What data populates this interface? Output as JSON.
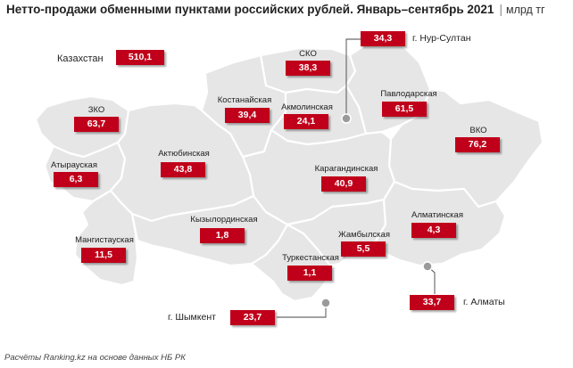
{
  "title": "Нетто-продажи обменными пунктами российских рублей. Январь–сентябрь 2021",
  "unit": "млрд тг",
  "total": {
    "label": "Казахстан",
    "value": "510,1"
  },
  "regions": [
    {
      "id": "sko",
      "name": "СКО",
      "value": "38,3"
    },
    {
      "id": "kostanay",
      "name": "Костанайская",
      "value": "39,4"
    },
    {
      "id": "akmola",
      "name": "Акмолинская",
      "value": "24,1"
    },
    {
      "id": "pavlodar",
      "name": "Павлодарская",
      "value": "61,5"
    },
    {
      "id": "zko",
      "name": "ЗКО",
      "value": "63,7"
    },
    {
      "id": "vko",
      "name": "ВКО",
      "value": "76,2"
    },
    {
      "id": "aktobe",
      "name": "Актюбинская",
      "value": "43,8"
    },
    {
      "id": "atyrau",
      "name": "Атырауская",
      "value": "6,3"
    },
    {
      "id": "karaganda",
      "name": "Карагандинская",
      "value": "40,9"
    },
    {
      "id": "kyzylorda",
      "name": "Кызылординская",
      "value": "1,8"
    },
    {
      "id": "almaty_obl",
      "name": "Алматинская",
      "value": "4,3"
    },
    {
      "id": "zhambyl",
      "name": "Жамбылская",
      "value": "5,5"
    },
    {
      "id": "mangystau",
      "name": "Мангистауская",
      "value": "11,5"
    },
    {
      "id": "turkestan",
      "name": "Туркестанская",
      "value": "1,1"
    }
  ],
  "cities": [
    {
      "id": "nursultan",
      "name": "г. Нур-Султан",
      "value": "34,3"
    },
    {
      "id": "almaty",
      "name": "г. Алматы",
      "value": "33,7"
    },
    {
      "id": "shymkent",
      "name": "г. Шымкент",
      "value": "23,7"
    }
  ],
  "source": "Расчёты Ranking.kz на основе данных НБ РК",
  "colors": {
    "accent": "#c0001a",
    "map_fill": "#e6e6e6",
    "map_border": "#ffffff",
    "city_marker": "#9a9a9a"
  }
}
